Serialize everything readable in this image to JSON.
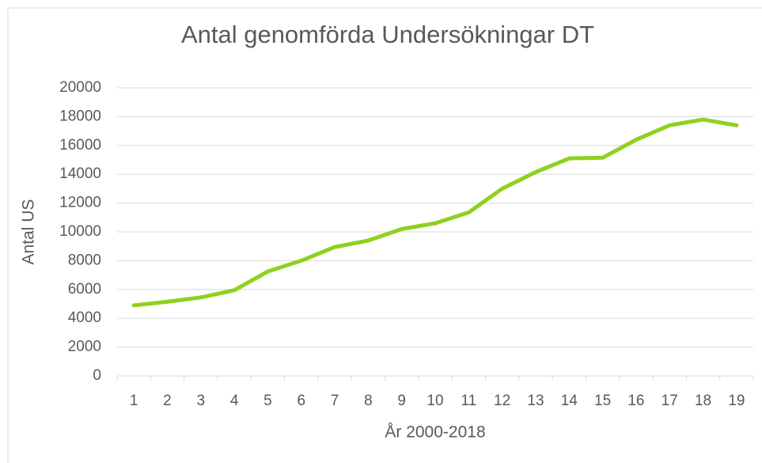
{
  "chart_data": {
    "type": "line",
    "title": "Antal genomförda Undersökningar DT",
    "x_label": "År 2000-2018",
    "y_label": "Antal US",
    "categories": [
      "1",
      "2",
      "3",
      "4",
      "5",
      "6",
      "7",
      "8",
      "9",
      "10",
      "11",
      "12",
      "13",
      "14",
      "15",
      "16",
      "17",
      "18",
      "19"
    ],
    "series": [
      {
        "name": "Antal US",
        "color": "#8fd11f",
        "values": [
          4900,
          5150,
          5450,
          5950,
          7250,
          8000,
          8950,
          9400,
          10200,
          10600,
          11350,
          13000,
          14150,
          15100,
          15150,
          16400,
          17400,
          17800,
          17400
        ]
      }
    ],
    "ylim": [
      0,
      20000
    ],
    "yticks": [
      0,
      2000,
      4000,
      6000,
      8000,
      10000,
      12000,
      14000,
      16000,
      18000,
      20000
    ],
    "grid": true
  }
}
